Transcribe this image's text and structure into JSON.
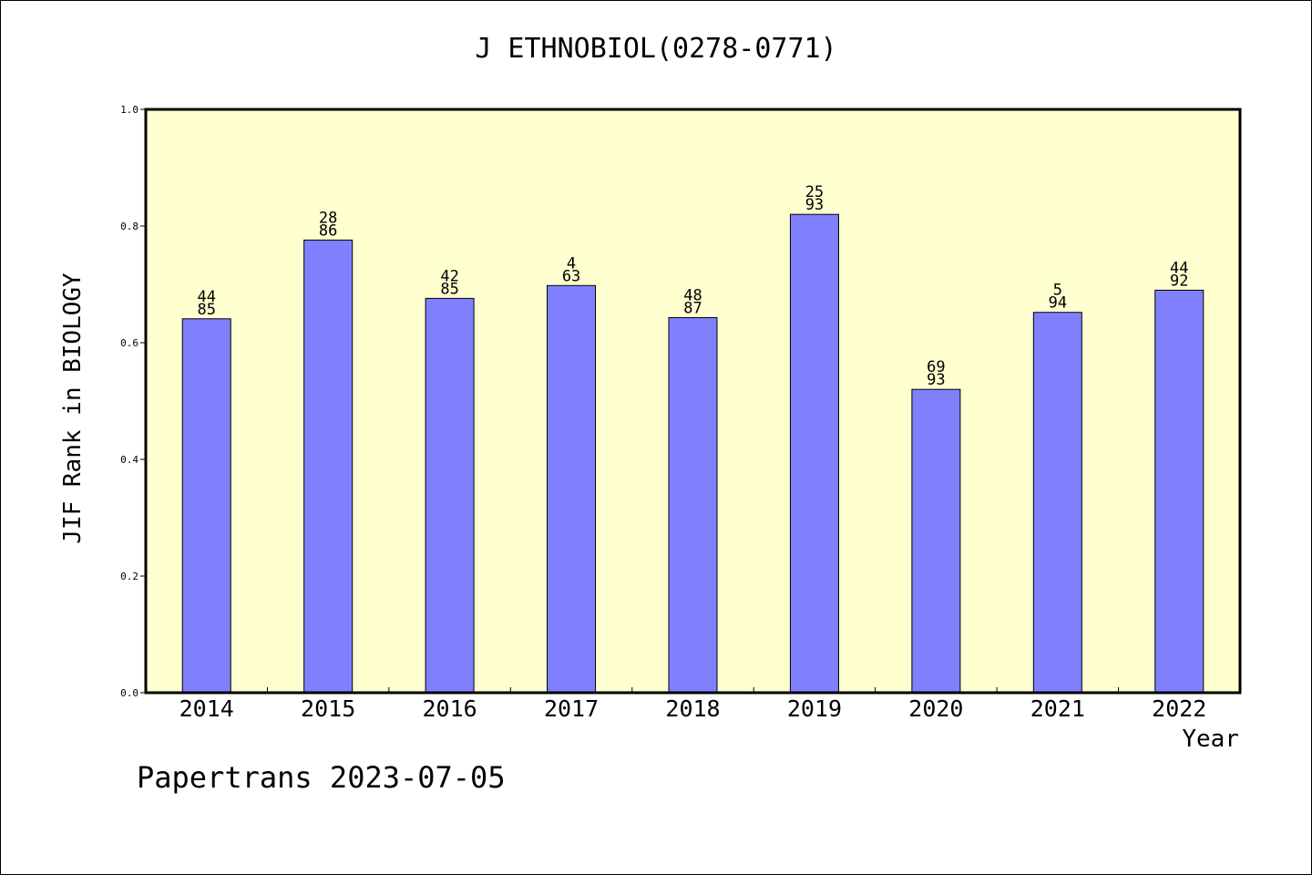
{
  "chart_data": {
    "type": "bar",
    "title": "J ETHNOBIOL(0278-0771)",
    "xlabel": "Year",
    "ylabel": "JIF Rank in BIOLOGY",
    "categories": [
      "2014",
      "2015",
      "2016",
      "2017",
      "2018",
      "2019",
      "2020",
      "2021",
      "2022"
    ],
    "values": [
      0.641,
      0.776,
      0.676,
      0.698,
      0.643,
      0.82,
      0.52,
      0.652,
      0.69
    ],
    "rank": [
      "44",
      "28",
      "42",
      "4",
      "48",
      "25",
      "69",
      "5",
      "44"
    ],
    "total": [
      "85",
      "86",
      "85",
      "63",
      "87",
      "93",
      "93",
      "94",
      "92"
    ],
    "ylim": [
      0,
      1.0
    ],
    "yticks": [
      "0.0",
      "0.2",
      "0.4",
      "0.6",
      "0.8",
      "1.0"
    ],
    "plot_background": "#ffffd0",
    "bar_color": "#8080ff",
    "grid": false
  },
  "footer": {
    "credit": "Papertrans 2023-07-05"
  }
}
